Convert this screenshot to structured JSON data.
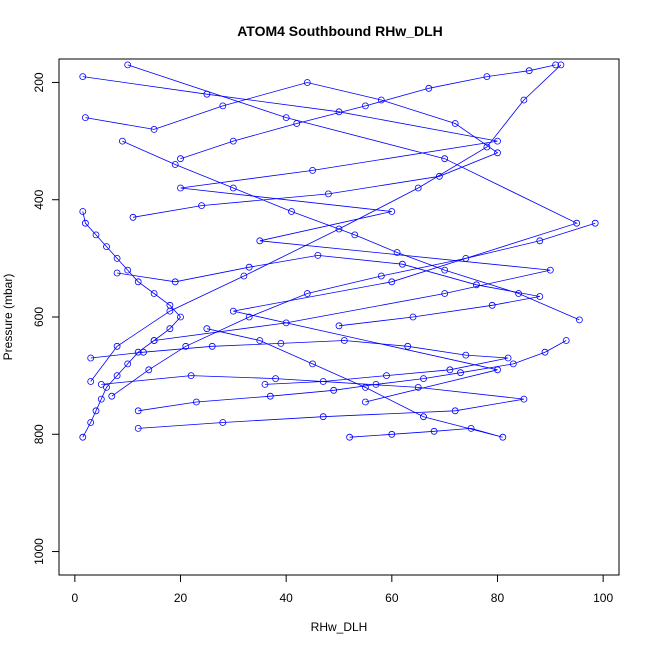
{
  "chart_data": {
    "type": "scatter",
    "title": "ATOM4 Southbound RHw_DLH",
    "xlabel": "RHw_DLH",
    "ylabel": "Pressure (mbar)",
    "xlim": [
      -3,
      103
    ],
    "ylim": [
      1040,
      160
    ],
    "y_reversed": true,
    "x_ticks": [
      0,
      20,
      40,
      60,
      80,
      100
    ],
    "x_tick_labels": [
      "0",
      "20",
      "40",
      "60",
      "80",
      "100"
    ],
    "y_ticks": [
      200,
      400,
      600,
      800,
      1000
    ],
    "y_tick_labels": [
      "200",
      "400",
      "600",
      "800",
      "1000"
    ],
    "grid": false,
    "legend": "none",
    "series_style": {
      "color": "#0000ff",
      "marker": "open-circle",
      "connected": true
    },
    "series": [
      {
        "x": [
          1.5,
          3,
          4,
          5,
          6,
          8,
          10,
          12,
          15,
          18,
          20,
          18,
          15,
          12,
          10,
          8,
          6,
          4,
          2,
          1.5
        ],
        "y": [
          805,
          780,
          760,
          740,
          720,
          700,
          680,
          660,
          640,
          620,
          600,
          580,
          560,
          540,
          520,
          500,
          480,
          460,
          440,
          420
        ]
      },
      {
        "x": [
          1.5,
          25,
          50,
          80,
          45,
          20,
          60,
          35,
          90,
          70,
          40,
          15
        ],
        "y": [
          190,
          220,
          250,
          300,
          350,
          380,
          420,
          470,
          520,
          560,
          610,
          640
        ]
      },
      {
        "x": [
          10,
          40,
          70,
          95,
          60,
          30,
          80,
          55
        ],
        "y": [
          170,
          260,
          330,
          440,
          540,
          590,
          690,
          745
        ]
      },
      {
        "x": [
          5,
          22,
          38,
          65,
          85,
          72,
          47,
          28,
          12
        ],
        "y": [
          715,
          700,
          705,
          720,
          740,
          760,
          770,
          780,
          790
        ]
      },
      {
        "x": [
          52,
          60,
          68,
          75,
          81,
          66,
          55,
          45,
          35,
          25
        ],
        "y": [
          805,
          800,
          795,
          790,
          805,
          770,
          720,
          680,
          640,
          620
        ]
      },
      {
        "x": [
          92,
          85,
          78,
          65,
          50,
          32,
          18,
          8,
          3
        ],
        "y": [
          170,
          230,
          310,
          380,
          450,
          530,
          590,
          650,
          710
        ]
      },
      {
        "x": [
          98.5,
          88,
          74,
          58,
          44,
          33,
          21,
          14,
          7
        ],
        "y": [
          440,
          470,
          500,
          530,
          560,
          600,
          650,
          690,
          735
        ]
      },
      {
        "x": [
          95.5,
          84,
          70,
          61,
          53,
          41,
          30,
          19,
          9
        ],
        "y": [
          605,
          560,
          520,
          490,
          460,
          420,
          380,
          340,
          300
        ]
      },
      {
        "x": [
          20,
          30,
          42,
          55,
          67,
          78,
          86,
          91
        ],
        "y": [
          330,
          300,
          270,
          240,
          210,
          190,
          180,
          170
        ]
      },
      {
        "x": [
          3,
          13,
          26,
          39,
          51,
          63,
          74,
          82,
          71,
          59,
          47,
          36
        ],
        "y": [
          670,
          660,
          650,
          645,
          640,
          650,
          665,
          670,
          690,
          700,
          710,
          715
        ]
      },
      {
        "x": [
          2,
          15,
          28,
          44,
          58,
          72,
          80,
          69,
          48,
          24,
          11
        ],
        "y": [
          260,
          280,
          240,
          200,
          230,
          270,
          320,
          360,
          390,
          410,
          430
        ]
      },
      {
        "x": [
          8,
          19,
          33,
          46,
          62,
          76,
          88,
          79,
          64,
          50
        ],
        "y": [
          525,
          540,
          515,
          495,
          510,
          545,
          565,
          580,
          600,
          615
        ]
      },
      {
        "x": [
          12,
          23,
          37,
          49,
          57,
          66,
          73,
          83,
          89,
          93
        ],
        "y": [
          760,
          745,
          735,
          725,
          715,
          705,
          695,
          680,
          660,
          640
        ]
      }
    ]
  }
}
